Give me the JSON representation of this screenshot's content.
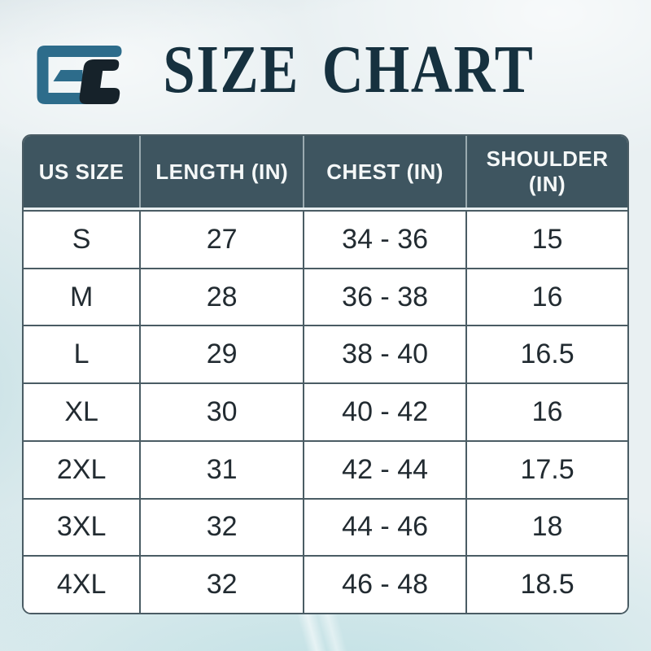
{
  "header": {
    "title": "SIZE CHART",
    "logo_text": "GC"
  },
  "colors": {
    "title_text": "#16313f",
    "table_header_bg": "#3e5560",
    "table_grid_line": "#4a5c64",
    "cell_text": "#222b31",
    "logo_blue": "#2d6c8b",
    "logo_dark": "#16222a",
    "page_bg": "#e9f0f2"
  },
  "chart_data": {
    "type": "table",
    "title": "SIZE CHART",
    "columns": [
      "US SIZE",
      "LENGTH (IN)",
      "CHEST (IN)",
      "SHOULDER (IN)"
    ],
    "rows": [
      [
        "S",
        "27",
        "34 - 36",
        "15"
      ],
      [
        "M",
        "28",
        "36 - 38",
        "16"
      ],
      [
        "L",
        "29",
        "38 - 40",
        "16.5"
      ],
      [
        "XL",
        "30",
        "40 - 42",
        "16"
      ],
      [
        "2XL",
        "31",
        "42 - 44",
        "17.5"
      ],
      [
        "3XL",
        "32",
        "44 - 46",
        "18"
      ],
      [
        "4XL",
        "32",
        "46 - 48",
        "18.5"
      ]
    ],
    "layout": {
      "header_text_color": "#f5f8f8",
      "body_bg": "#ffffff",
      "grid": true
    }
  }
}
